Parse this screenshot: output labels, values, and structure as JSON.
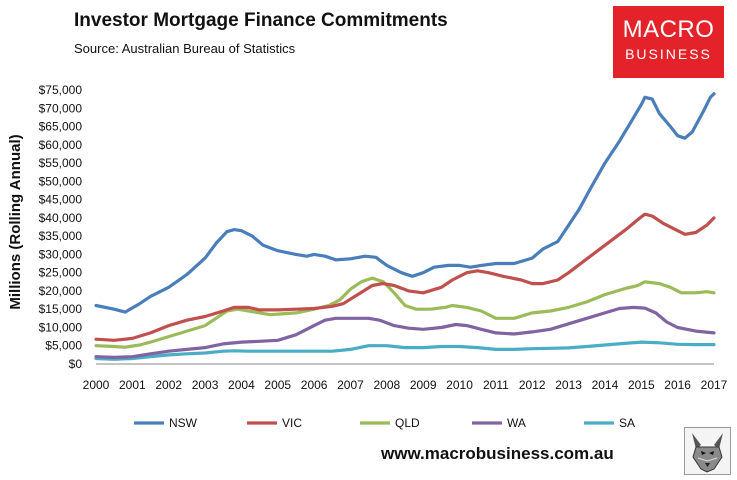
{
  "header": {
    "title": "Investor Mortgage Finance Commitments",
    "subtitle": "Source: Australian Bureau of Statistics"
  },
  "logo": {
    "line1": "MACRO",
    "line2": "BUSINESS"
  },
  "footer": {
    "website": "www.macrobusiness.com.au"
  },
  "chart_data": {
    "type": "line",
    "title": "Investor Mortgage Finance Commitments",
    "ylabel": "Millions (Rolling Annual)",
    "xlabel": "",
    "xlim": [
      2000,
      2017
    ],
    "ylim": [
      0,
      75000
    ],
    "x_ticks": [
      "2000",
      "2001",
      "2002",
      "2003",
      "2004",
      "2005",
      "2006",
      "2007",
      "2008",
      "2009",
      "2010",
      "2011",
      "2012",
      "2013",
      "2014",
      "2015",
      "2016",
      "2017"
    ],
    "y_ticks": [
      {
        "value": 0,
        "label": "$0"
      },
      {
        "value": 5000,
        "label": "$5,000"
      },
      {
        "value": 10000,
        "label": "$10,000"
      },
      {
        "value": 15000,
        "label": "$15,000"
      },
      {
        "value": 20000,
        "label": "$20,000"
      },
      {
        "value": 25000,
        "label": "$25,000"
      },
      {
        "value": 30000,
        "label": "$30,000"
      },
      {
        "value": 35000,
        "label": "$35,000"
      },
      {
        "value": 40000,
        "label": "$40,000"
      },
      {
        "value": 45000,
        "label": "$45,000"
      },
      {
        "value": 50000,
        "label": "$50,000"
      },
      {
        "value": 55000,
        "label": "$55,000"
      },
      {
        "value": 60000,
        "label": "$60,000"
      },
      {
        "value": 65000,
        "label": "$65,000"
      },
      {
        "value": 70000,
        "label": "$70,000"
      },
      {
        "value": 75000,
        "label": "$75,000"
      }
    ],
    "grid": false,
    "legend_position": "bottom",
    "series": [
      {
        "name": "NSW",
        "color": "#4a7ebb",
        "points": [
          [
            2000,
            16000
          ],
          [
            2000.5,
            15000
          ],
          [
            2000.8,
            14200
          ],
          [
            2001.2,
            16500
          ],
          [
            2001.5,
            18500
          ],
          [
            2002,
            21000
          ],
          [
            2002.5,
            24500
          ],
          [
            2003,
            29000
          ],
          [
            2003.3,
            33000
          ],
          [
            2003.6,
            36200
          ],
          [
            2003.8,
            36800
          ],
          [
            2004,
            36500
          ],
          [
            2004.3,
            35000
          ],
          [
            2004.6,
            32500
          ],
          [
            2005,
            31000
          ],
          [
            2005.5,
            30000
          ],
          [
            2005.8,
            29500
          ],
          [
            2006,
            30000
          ],
          [
            2006.3,
            29500
          ],
          [
            2006.6,
            28500
          ],
          [
            2007,
            28800
          ],
          [
            2007.4,
            29500
          ],
          [
            2007.7,
            29200
          ],
          [
            2008,
            27000
          ],
          [
            2008.4,
            25000
          ],
          [
            2008.7,
            24000
          ],
          [
            2009,
            25000
          ],
          [
            2009.3,
            26500
          ],
          [
            2009.7,
            27000
          ],
          [
            2010,
            27000
          ],
          [
            2010.3,
            26500
          ],
          [
            2010.6,
            27000
          ],
          [
            2011,
            27500
          ],
          [
            2011.5,
            27500
          ],
          [
            2012,
            29000
          ],
          [
            2012.3,
            31500
          ],
          [
            2012.7,
            33500
          ],
          [
            2013,
            38000
          ],
          [
            2013.3,
            42500
          ],
          [
            2013.6,
            48000
          ],
          [
            2014,
            55000
          ],
          [
            2014.4,
            61000
          ],
          [
            2014.7,
            66000
          ],
          [
            2015,
            71000
          ],
          [
            2015.1,
            73000
          ],
          [
            2015.3,
            72500
          ],
          [
            2015.5,
            68500
          ],
          [
            2015.8,
            65000
          ],
          [
            2016,
            62500
          ],
          [
            2016.2,
            61800
          ],
          [
            2016.4,
            63500
          ],
          [
            2016.7,
            69000
          ],
          [
            2016.9,
            73000
          ],
          [
            2017,
            74000
          ]
        ]
      },
      {
        "name": "VIC",
        "color": "#c0504d",
        "points": [
          [
            2000,
            6800
          ],
          [
            2000.5,
            6500
          ],
          [
            2001,
            7000
          ],
          [
            2001.5,
            8500
          ],
          [
            2002,
            10500
          ],
          [
            2002.5,
            12000
          ],
          [
            2003,
            13000
          ],
          [
            2003.5,
            14500
          ],
          [
            2003.8,
            15500
          ],
          [
            2004.2,
            15500
          ],
          [
            2004.5,
            14800
          ],
          [
            2005,
            14800
          ],
          [
            2005.5,
            15000
          ],
          [
            2006,
            15200
          ],
          [
            2006.5,
            15800
          ],
          [
            2006.8,
            16500
          ],
          [
            2007.2,
            19000
          ],
          [
            2007.6,
            21500
          ],
          [
            2007.9,
            22000
          ],
          [
            2008.2,
            21500
          ],
          [
            2008.6,
            20000
          ],
          [
            2009,
            19500
          ],
          [
            2009.5,
            21000
          ],
          [
            2009.8,
            23000
          ],
          [
            2010.2,
            25000
          ],
          [
            2010.5,
            25500
          ],
          [
            2010.8,
            25000
          ],
          [
            2011.2,
            24000
          ],
          [
            2011.7,
            23000
          ],
          [
            2012,
            22000
          ],
          [
            2012.3,
            22000
          ],
          [
            2012.7,
            23000
          ],
          [
            2013,
            25000
          ],
          [
            2013.4,
            28000
          ],
          [
            2013.8,
            31000
          ],
          [
            2014.2,
            34000
          ],
          [
            2014.6,
            37000
          ],
          [
            2014.9,
            39500
          ],
          [
            2015.1,
            41000
          ],
          [
            2015.3,
            40500
          ],
          [
            2015.6,
            38500
          ],
          [
            2015.9,
            37000
          ],
          [
            2016.2,
            35500
          ],
          [
            2016.5,
            36000
          ],
          [
            2016.8,
            38000
          ],
          [
            2017,
            40000
          ]
        ]
      },
      {
        "name": "QLD",
        "color": "#9bbb59",
        "points": [
          [
            2000,
            5000
          ],
          [
            2000.5,
            4800
          ],
          [
            2000.8,
            4600
          ],
          [
            2001.2,
            5200
          ],
          [
            2001.5,
            6000
          ],
          [
            2002,
            7500
          ],
          [
            2002.5,
            9000
          ],
          [
            2003,
            10500
          ],
          [
            2003.3,
            12500
          ],
          [
            2003.6,
            14500
          ],
          [
            2003.9,
            15000
          ],
          [
            2004.2,
            14500
          ],
          [
            2004.5,
            14000
          ],
          [
            2004.8,
            13500
          ],
          [
            2005.2,
            13800
          ],
          [
            2005.5,
            14000
          ],
          [
            2006,
            15000
          ],
          [
            2006.4,
            16000
          ],
          [
            2006.7,
            17500
          ],
          [
            2007,
            20500
          ],
          [
            2007.3,
            22500
          ],
          [
            2007.6,
            23500
          ],
          [
            2007.9,
            22500
          ],
          [
            2008.2,
            19500
          ],
          [
            2008.5,
            16000
          ],
          [
            2008.8,
            15000
          ],
          [
            2009.2,
            15000
          ],
          [
            2009.6,
            15500
          ],
          [
            2009.8,
            16000
          ],
          [
            2010.2,
            15500
          ],
          [
            2010.6,
            14500
          ],
          [
            2011,
            12500
          ],
          [
            2011.5,
            12500
          ],
          [
            2012,
            14000
          ],
          [
            2012.5,
            14500
          ],
          [
            2013,
            15500
          ],
          [
            2013.5,
            17000
          ],
          [
            2014,
            19000
          ],
          [
            2014.5,
            20500
          ],
          [
            2014.9,
            21500
          ],
          [
            2015.1,
            22500
          ],
          [
            2015.5,
            22000
          ],
          [
            2015.8,
            21000
          ],
          [
            2016.1,
            19500
          ],
          [
            2016.5,
            19500
          ],
          [
            2016.8,
            19800
          ],
          [
            2017,
            19500
          ]
        ]
      },
      {
        "name": "WA",
        "color": "#8064a2",
        "points": [
          [
            2000,
            2000
          ],
          [
            2000.5,
            1800
          ],
          [
            2001,
            2000
          ],
          [
            2001.5,
            2800
          ],
          [
            2002,
            3500
          ],
          [
            2002.5,
            4000
          ],
          [
            2003,
            4500
          ],
          [
            2003.5,
            5500
          ],
          [
            2004,
            6000
          ],
          [
            2004.5,
            6200
          ],
          [
            2005,
            6500
          ],
          [
            2005.5,
            8000
          ],
          [
            2006,
            10500
          ],
          [
            2006.3,
            12000
          ],
          [
            2006.6,
            12500
          ],
          [
            2007,
            12500
          ],
          [
            2007.5,
            12500
          ],
          [
            2007.8,
            12000
          ],
          [
            2008.2,
            10500
          ],
          [
            2008.6,
            9800
          ],
          [
            2009,
            9500
          ],
          [
            2009.5,
            10000
          ],
          [
            2009.9,
            10800
          ],
          [
            2010.2,
            10500
          ],
          [
            2010.6,
            9500
          ],
          [
            2011,
            8500
          ],
          [
            2011.5,
            8200
          ],
          [
            2012,
            8800
          ],
          [
            2012.5,
            9500
          ],
          [
            2013,
            11000
          ],
          [
            2013.5,
            12500
          ],
          [
            2014,
            14000
          ],
          [
            2014.4,
            15200
          ],
          [
            2014.8,
            15500
          ],
          [
            2015.1,
            15300
          ],
          [
            2015.4,
            14000
          ],
          [
            2015.7,
            11500
          ],
          [
            2016,
            10000
          ],
          [
            2016.5,
            9000
          ],
          [
            2017,
            8500
          ]
        ]
      },
      {
        "name": "SA",
        "color": "#4bacc6",
        "points": [
          [
            2000,
            1500
          ],
          [
            2000.5,
            1300
          ],
          [
            2001,
            1500
          ],
          [
            2001.5,
            2000
          ],
          [
            2002,
            2500
          ],
          [
            2002.5,
            2800
          ],
          [
            2003,
            3000
          ],
          [
            2003.5,
            3500
          ],
          [
            2003.8,
            3600
          ],
          [
            2004.2,
            3500
          ],
          [
            2005,
            3500
          ],
          [
            2006,
            3500
          ],
          [
            2006.5,
            3500
          ],
          [
            2007,
            4000
          ],
          [
            2007.5,
            5000
          ],
          [
            2008,
            5000
          ],
          [
            2008.5,
            4500
          ],
          [
            2009,
            4500
          ],
          [
            2009.5,
            4800
          ],
          [
            2010,
            4800
          ],
          [
            2010.5,
            4500
          ],
          [
            2011,
            4000
          ],
          [
            2011.5,
            4000
          ],
          [
            2012,
            4200
          ],
          [
            2012.5,
            4300
          ],
          [
            2013,
            4400
          ],
          [
            2013.5,
            4800
          ],
          [
            2014,
            5200
          ],
          [
            2014.5,
            5600
          ],
          [
            2015,
            6000
          ],
          [
            2015.5,
            5800
          ],
          [
            2016,
            5400
          ],
          [
            2016.5,
            5300
          ],
          [
            2017,
            5300
          ]
        ]
      }
    ]
  }
}
